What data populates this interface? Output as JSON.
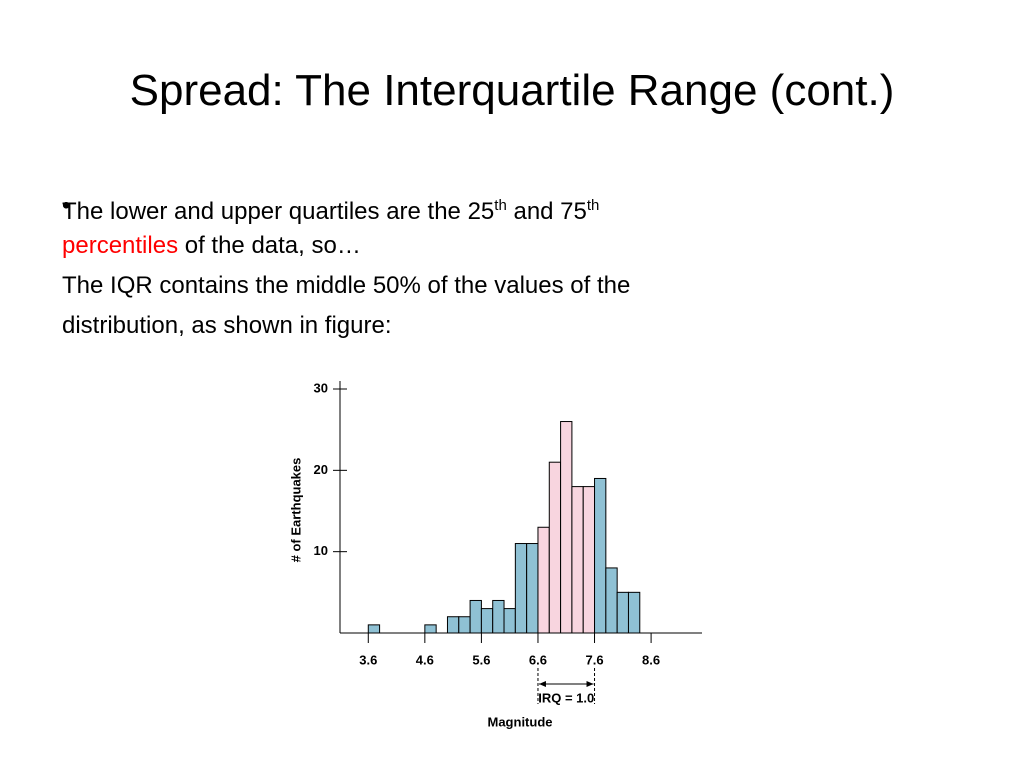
{
  "title": "Spread: The Interquartile Range (cont.)",
  "bullets": [
    {
      "lines": [
        {
          "runs": [
            {
              "text": "The lower and upper quartiles are the 25"
            },
            {
              "text": "th",
              "sup": true
            },
            {
              "text": " and 75"
            },
            {
              "text": "th",
              "sup": true
            }
          ]
        },
        {
          "runs": [
            {
              "text": "percentiles",
              "color": "#ff0000"
            },
            {
              "text": " of the data, so…"
            }
          ]
        }
      ]
    },
    {
      "lines": [
        {
          "runs": [
            {
              "text": "The IQR contains the middle 50% of the values of the"
            }
          ]
        },
        {
          "runs": [
            {
              "text": "distribution, as shown in figure:"
            }
          ]
        }
      ]
    }
  ],
  "chart_data": {
    "type": "histogram",
    "bins": [
      3.6,
      3.8,
      4.0,
      4.2,
      4.4,
      4.6,
      4.8,
      5.0,
      5.2,
      5.4,
      5.6,
      5.8,
      6.0,
      6.2,
      6.4,
      6.6,
      6.8,
      7.0,
      7.2,
      7.4,
      7.6,
      7.8,
      8.0,
      8.2,
      8.4
    ],
    "counts": [
      1,
      0,
      0,
      0,
      0,
      1,
      0,
      2,
      2,
      4,
      3,
      4,
      3,
      11,
      11,
      13,
      21,
      26,
      18,
      18,
      19,
      8,
      5,
      5
    ],
    "color": "#8fc1d4",
    "iqr": {
      "range": [
        6.6,
        7.6
      ],
      "label": "IRQ = 1.0",
      "color": "#f8d5df"
    },
    "xlim": [
      3.1,
      9.5
    ],
    "xticks": [
      3.6,
      4.6,
      5.6,
      6.6,
      7.6,
      8.6
    ],
    "ylim": [
      0,
      30
    ],
    "yticks": [
      10,
      20,
      30
    ],
    "x_label": "Magnitude",
    "y_label": "# of Earthquakes"
  }
}
